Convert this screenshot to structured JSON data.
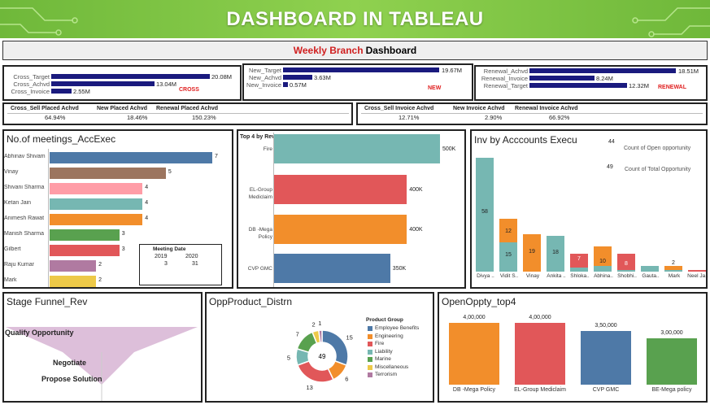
{
  "header": {
    "title": "DASHBOARD IN TABLEAU"
  },
  "subtitle": {
    "red": "Weekly Branch",
    "black": "Dashboard"
  },
  "colors": {
    "navy": "#1a1a7e",
    "red": "#e02020",
    "banner": "#7cc443"
  },
  "kpi_bars": [
    {
      "tag": "CROSS",
      "items": [
        {
          "label": "Cross_Target",
          "value": "20.08M",
          "frac": 1.0
        },
        {
          "label": "Cross_Achvd",
          "value": "13.04M",
          "frac": 0.649
        },
        {
          "label": "Cross_Invoice",
          "value": "2.55M",
          "frac": 0.127
        }
      ]
    },
    {
      "tag": "NEW",
      "items": [
        {
          "label": "New_Target",
          "value": "19.67M",
          "frac": 1.0
        },
        {
          "label": "New_Achvd",
          "value": "3.63M",
          "frac": 0.185
        },
        {
          "label": "New_Invoice",
          "value": "0.57M",
          "frac": 0.029
        }
      ]
    },
    {
      "tag": "RENEWAL",
      "items": [
        {
          "label": "Renewal_Achvd",
          "value": "18.51M",
          "frac": 1.0
        },
        {
          "label": "Renewal_Invoice",
          "value": "8.24M",
          "frac": 0.445
        },
        {
          "label": "Renewal_Target",
          "value": "12.32M",
          "frac": 0.666
        }
      ]
    }
  ],
  "placed_table": {
    "headers": [
      "Cross_Sell Placed Achvd",
      "New Placed Achvd",
      "Renewal Placed Achvd"
    ],
    "values": [
      "64.94%",
      "18.46%",
      "150.23%"
    ]
  },
  "invoice_table": {
    "headers": [
      "Cross_Sell Invoice Achvd",
      "New Invoice Achvd",
      "Renewal Invoice Achvd"
    ],
    "values": [
      "12.71%",
      "2.90%",
      "66.92%"
    ]
  },
  "chart_data": [
    {
      "type": "bar",
      "title": "No.of meetings_AccExec",
      "orientation": "horizontal",
      "categories": [
        "Abhinav Shivam",
        "Vinay",
        "Shivani Sharma",
        "Ketan Jain",
        "Animesh Rawat",
        "Manish Sharma",
        "Gilbert",
        "Raju Kumar",
        "Mark"
      ],
      "values": [
        7,
        5,
        4,
        4,
        4,
        3,
        3,
        2,
        2
      ],
      "colors": [
        "#4e79a7",
        "#9c755f",
        "#ff9da7",
        "#76b7b2",
        "#f28e2b",
        "#59a14f",
        "#e15759",
        "#b07aa1",
        "#edc948"
      ],
      "inset_table": {
        "title": "Meeting Date",
        "years": [
          "2019",
          "2020"
        ],
        "values": [
          "3",
          "31"
        ]
      }
    },
    {
      "type": "bar",
      "title": "Top 4 by Rev",
      "orientation": "horizontal",
      "categories": [
        "Fire",
        "EL-Group Mediclaim",
        "DB -Mega Policy",
        "CVP GMC"
      ],
      "values": [
        500000,
        400000,
        400000,
        350000
      ],
      "labels": [
        "500K",
        "400K",
        "400K",
        "350K"
      ],
      "colors": [
        "#76b7b2",
        "#e15759",
        "#f28e2b",
        "#4e79a7"
      ]
    },
    {
      "type": "bar",
      "title": "Inv by Acccounts Execu",
      "stacked": true,
      "categories": [
        "Divya ..",
        "Vidit S..",
        "Vinay",
        "Ankita ..",
        "Shloka..",
        "Abhina..",
        "Shobhi..",
        "Gauta..",
        "Mark",
        "Neel Ja.."
      ],
      "series": [
        {
          "values": [
            58,
            15,
            0,
            18,
            2,
            3,
            1,
            3,
            1,
            0
          ],
          "color": "#76b7b2"
        },
        {
          "values": [
            0,
            12,
            19,
            0,
            0,
            10,
            0,
            0,
            2,
            0
          ],
          "color": "#f28e2b"
        },
        {
          "values": [
            0,
            0,
            0,
            0,
            7,
            0,
            8,
            0,
            0,
            1
          ],
          "color": "#e15759"
        }
      ],
      "labels": [
        [
          "58"
        ],
        [
          "15",
          "12"
        ],
        [
          "19"
        ],
        [
          "18"
        ],
        [
          "7"
        ],
        [
          "10"
        ],
        [
          "8"
        ],
        [],
        [
          "2"
        ],
        [
          "1"
        ]
      ],
      "legend_stats": [
        {
          "value": "44",
          "label": "Count of Open opportunity"
        },
        {
          "value": "49",
          "label": "Count of Total Opportunity"
        }
      ]
    },
    {
      "type": "area",
      "title": "Stage Funnel_Rev",
      "stages": [
        "Qualify Opportunity",
        "Negotiate",
        "Propose Solution"
      ],
      "color": "#d9b8d6"
    },
    {
      "type": "pie",
      "title": "OppProduct_Distrn",
      "center_label": "49",
      "legend_title": "Product Group",
      "slices": [
        {
          "name": "Employee Benefits",
          "value": 15,
          "color": "#4e79a7"
        },
        {
          "name": "Engineering",
          "value": 6,
          "color": "#f28e2b"
        },
        {
          "name": "Fire",
          "value": 13,
          "color": "#e15759"
        },
        {
          "name": "Liability",
          "value": 5,
          "color": "#76b7b2"
        },
        {
          "name": "Marine",
          "value": 7,
          "color": "#59a14f"
        },
        {
          "name": "Miscellaneous",
          "value": 2,
          "color": "#edc948"
        },
        {
          "name": "Terrorism",
          "value": 1,
          "color": "#b07aa1"
        }
      ],
      "labels": [
        "15",
        "6",
        "13",
        "5",
        "7",
        "2",
        "1"
      ]
    },
    {
      "type": "bar",
      "title": "OpenOppty_top4",
      "categories": [
        "DB -Mega Policy",
        "EL-Group Mediclaim",
        "CVP GMC",
        "BE-Mega policy"
      ],
      "values": [
        400000,
        400000,
        350000,
        300000
      ],
      "labels": [
        "4,00,000",
        "4,00,000",
        "3,50,000",
        "3,00,000"
      ],
      "colors": [
        "#f28e2b",
        "#e15759",
        "#4e79a7",
        "#59a14f"
      ]
    }
  ]
}
